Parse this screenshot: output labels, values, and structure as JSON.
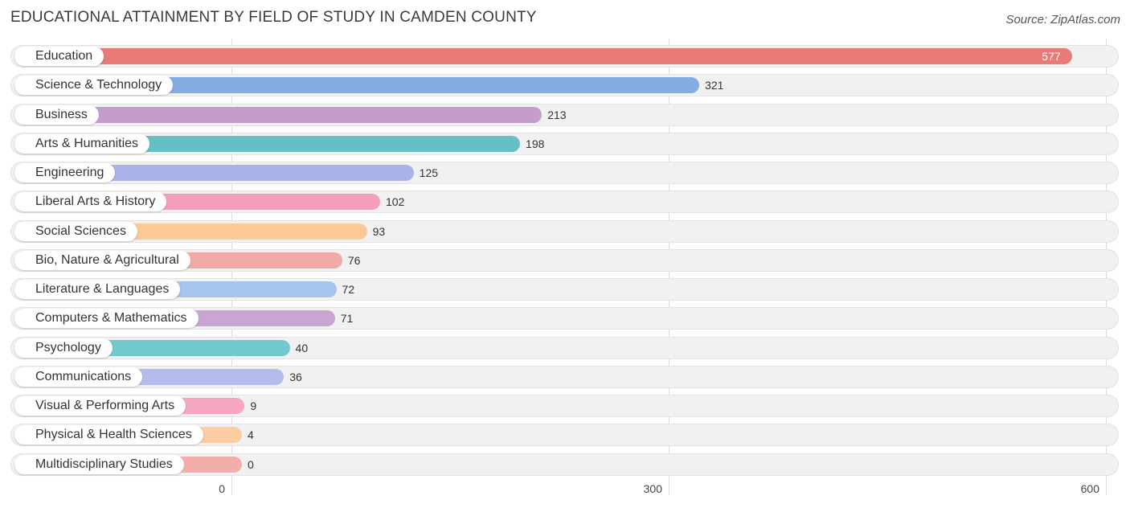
{
  "title": "EDUCATIONAL ATTAINMENT BY FIELD OF STUDY IN CAMDEN COUNTY",
  "source": "Source: ZipAtlas.com",
  "chart_data": {
    "type": "bar",
    "orientation": "horizontal",
    "title": "EDUCATIONAL ATTAINMENT BY FIELD OF STUDY IN CAMDEN COUNTY",
    "xlim": [
      0,
      600
    ],
    "xticks": [
      "0",
      "300",
      "600"
    ],
    "grid": true,
    "categories": [
      "Education",
      "Science & Technology",
      "Business",
      "Arts & Humanities",
      "Engineering",
      "Liberal Arts & History",
      "Social Sciences",
      "Bio, Nature & Agricultural",
      "Literature & Languages",
      "Computers & Mathematics",
      "Psychology",
      "Communications",
      "Visual & Performing Arts",
      "Physical & Health Sciences",
      "Multidisciplinary Studies"
    ],
    "values": [
      577,
      321,
      213,
      198,
      125,
      102,
      93,
      76,
      72,
      71,
      40,
      36,
      9,
      4,
      0
    ],
    "colors": [
      "#e87b76",
      "#86ade3",
      "#c39dcb",
      "#64bfc7",
      "#aab3e8",
      "#f59ebb",
      "#fbc896",
      "#f0aaa6",
      "#a6c5ec",
      "#c8a6d1",
      "#74c9ce",
      "#b4bcec",
      "#f6a6c2",
      "#fbcda0",
      "#f3aeaa"
    ]
  }
}
